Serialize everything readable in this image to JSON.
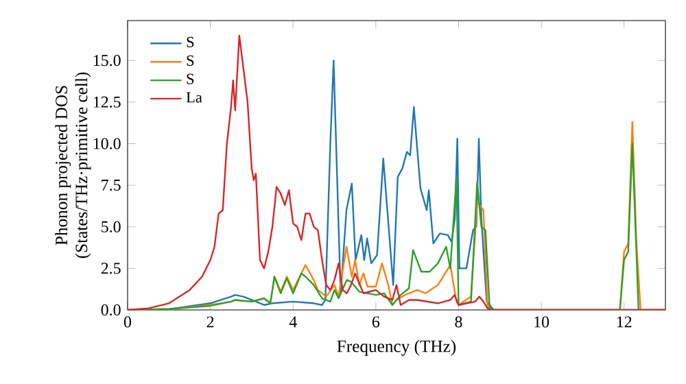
{
  "chart_data": {
    "type": "line",
    "xlabel": "Frequency (THz)",
    "ylabel": "Phonon projected DOS\n(States/THz·primitive cell)",
    "xlim": [
      0,
      13
    ],
    "ylim": [
      0,
      17.4
    ],
    "xticks": [
      0,
      2,
      4,
      6,
      8,
      10,
      12
    ],
    "yticks": [
      {
        "value": 0,
        "label": "0.0"
      },
      2.5,
      {
        "value": 5,
        "label": "5.0"
      },
      7.5,
      {
        "value": 10,
        "label": "10.0"
      },
      12.5,
      {
        "value": 15,
        "label": "15.0"
      }
    ],
    "legend": "top left",
    "grid": false,
    "line_style": "solid",
    "marker": "none",
    "series": [
      {
        "name": "S",
        "color": "#1f77b4",
        "x": [
          0,
          1,
          2,
          2.5,
          2.6,
          2.8,
          3.0,
          3.3,
          3.5,
          4.0,
          4.5,
          4.7,
          4.78,
          4.9,
          4.98,
          5.1,
          5.15,
          5.29,
          5.42,
          5.51,
          5.65,
          5.72,
          5.79,
          5.89,
          6.03,
          6.18,
          6.31,
          6.42,
          6.53,
          6.64,
          6.75,
          6.83,
          6.92,
          6.99,
          7.08,
          7.23,
          7.28,
          7.39,
          7.55,
          7.74,
          7.83,
          7.91,
          7.97,
          8.02,
          8.19,
          8.35,
          8.43,
          8.49,
          8.55,
          8.68,
          8.85,
          13
        ],
        "values": [
          0,
          0.05,
          0.4,
          0.8,
          0.9,
          0.8,
          0.6,
          0.3,
          0.4,
          0.5,
          0.4,
          0.3,
          0.6,
          10,
          15,
          5,
          1,
          6,
          7.6,
          3,
          4.5,
          3,
          4.3,
          2.8,
          3.3,
          9.1,
          5,
          1.5,
          8,
          8.5,
          9.5,
          9.3,
          12.2,
          10,
          7.3,
          6,
          7.2,
          4,
          4.6,
          4.5,
          4.1,
          5.5,
          10.3,
          2.5,
          2.5,
          4.8,
          5,
          10.3,
          5.5,
          0.5,
          0,
          0
        ]
      },
      {
        "name": "S",
        "color": "#ff7f0e",
        "x": [
          0,
          1,
          2,
          2.5,
          2.6,
          3.0,
          3.3,
          3.45,
          3.55,
          3.7,
          3.85,
          4.0,
          4.3,
          4.5,
          4.6,
          4.8,
          5.0,
          5.1,
          5.29,
          5.42,
          5.5,
          5.6,
          5.7,
          5.8,
          6.0,
          6.15,
          6.3,
          6.4,
          6.5,
          6.7,
          7.0,
          7.2,
          7.5,
          7.8,
          7.95,
          8.0,
          8.3,
          8.45,
          8.6,
          8.7,
          8.8,
          11.9,
          12.0,
          12.1,
          12.2,
          12.3,
          12.4,
          13
        ],
        "values": [
          0,
          0.05,
          0.3,
          0.5,
          0.6,
          0.5,
          0.7,
          0.4,
          2.0,
          1.1,
          2.0,
          1.2,
          2.7,
          1.8,
          1.2,
          0.8,
          1.5,
          0.8,
          3.8,
          2,
          3,
          1.5,
          2.2,
          1.4,
          1.4,
          2.8,
          1.5,
          0.3,
          0.6,
          0.9,
          1.2,
          1.0,
          1.5,
          2.7,
          0.5,
          0.3,
          0.8,
          6.5,
          6,
          0.2,
          0,
          0,
          3.5,
          4,
          11.3,
          4,
          0,
          0
        ]
      },
      {
        "name": "S",
        "color": "#2ca02c",
        "x": [
          0,
          1,
          2,
          2.5,
          2.6,
          3.0,
          3.3,
          3.45,
          3.55,
          3.7,
          3.85,
          4.0,
          4.2,
          4.3,
          4.5,
          4.7,
          4.9,
          5.0,
          5.1,
          5.3,
          5.4,
          5.6,
          5.8,
          6.0,
          6.2,
          6.4,
          6.6,
          6.8,
          6.9,
          7.1,
          7.3,
          7.5,
          7.7,
          7.8,
          7.95,
          8.0,
          8.3,
          8.45,
          8.55,
          8.65,
          8.75,
          8.85,
          11.9,
          12.0,
          12.1,
          12.2,
          12.35,
          13
        ],
        "values": [
          0,
          0.05,
          0.25,
          0.5,
          0.6,
          0.5,
          0.7,
          0.4,
          2.0,
          1.0,
          1.9,
          1.0,
          2.2,
          2.0,
          1.5,
          0.7,
          0.5,
          1.2,
          0.7,
          1.8,
          1.7,
          1.1,
          1.0,
          0.9,
          1.0,
          0.3,
          0.9,
          1.3,
          3.6,
          2.3,
          2.3,
          2.8,
          3.8,
          2.5,
          8.0,
          0.3,
          0.5,
          7.7,
          5,
          4.8,
          0.2,
          0,
          0,
          3,
          3.5,
          10,
          0,
          0
        ]
      },
      {
        "name": "La",
        "color": "#d62728",
        "x": [
          0,
          0.5,
          1.0,
          1.5,
          1.8,
          2.0,
          2.1,
          2.2,
          2.3,
          2.4,
          2.5,
          2.55,
          2.6,
          2.7,
          2.8,
          2.9,
          3.0,
          3.05,
          3.1,
          3.2,
          3.3,
          3.4,
          3.5,
          3.6,
          3.7,
          3.8,
          3.9,
          4.0,
          4.1,
          4.2,
          4.3,
          4.4,
          4.5,
          4.6,
          4.7,
          4.8,
          4.9,
          5.0,
          5.1,
          5.2,
          5.3,
          5.4,
          5.5,
          5.7,
          6.0,
          6.2,
          6.4,
          6.5,
          6.6,
          6.8,
          7.0,
          7.5,
          7.8,
          7.9,
          8.0,
          8.4,
          8.5,
          8.6,
          8.7,
          8.8,
          13
        ],
        "values": [
          0,
          0.1,
          0.4,
          1.2,
          2,
          3,
          3.8,
          5.8,
          6,
          10,
          12.2,
          13.8,
          12,
          16.5,
          14.5,
          12.5,
          8.5,
          7.8,
          8.2,
          3,
          2.5,
          3.5,
          5,
          7.4,
          7,
          6.3,
          7.2,
          5.2,
          5,
          4.2,
          5.8,
          5.8,
          5,
          4.8,
          3,
          1.5,
          1.2,
          1.8,
          2.8,
          1.2,
          1,
          1.5,
          2.2,
          1,
          1.2,
          0.8,
          0.6,
          1.5,
          0.3,
          0.6,
          0.6,
          0.4,
          0.6,
          0.9,
          0.3,
          0.5,
          0.8,
          0.5,
          0.1,
          0,
          0
        ]
      }
    ]
  }
}
